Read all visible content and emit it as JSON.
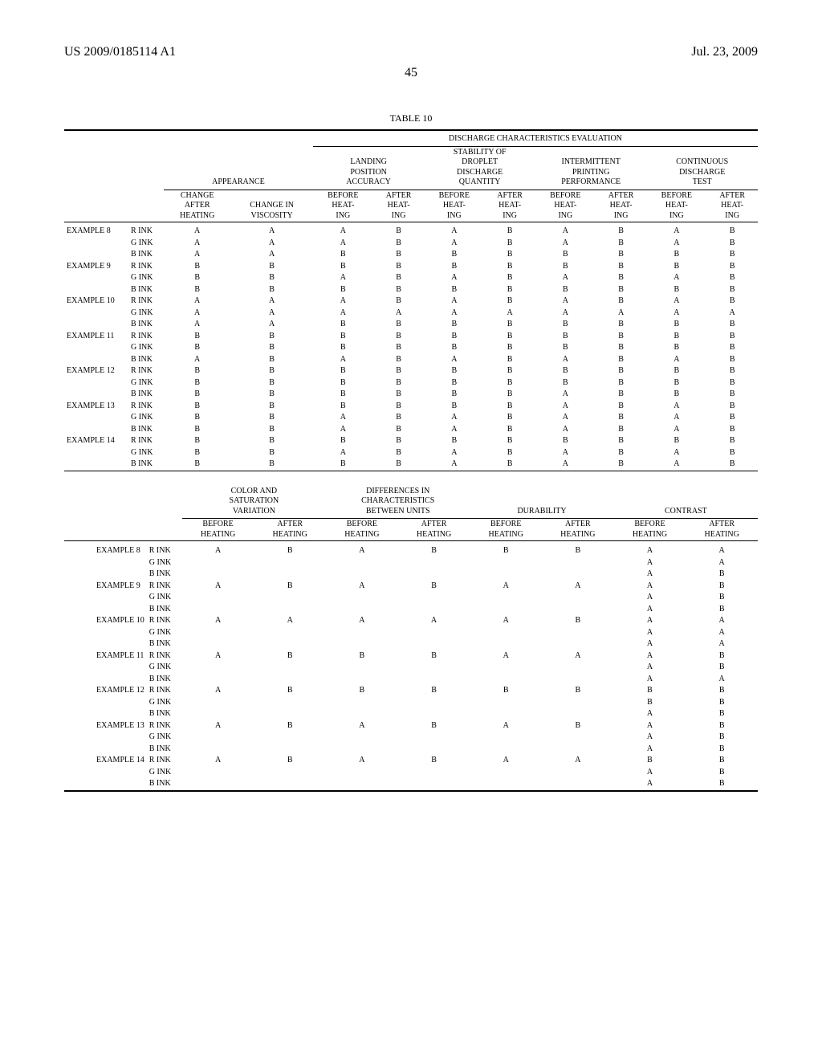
{
  "header": {
    "pubnum": "US 2009/0185114 A1",
    "date": "Jul. 23, 2009"
  },
  "pagenum": "45",
  "table_caption": "TABLE 10",
  "t1": {
    "group_top": "DISCHARGE CHARACTERISTICS EVALUATION",
    "appearance": "APPEARANCE",
    "groups": {
      "g1": [
        "LANDING",
        "POSITION",
        "ACCURACY"
      ],
      "g2": [
        "STABILITY OF",
        "DROPLET",
        "DISCHARGE",
        "QUANTITY"
      ],
      "g3": [
        "INTERMITTENT",
        "PRINTING",
        "PERFORMANCE"
      ],
      "g4": [
        "CONTINUOUS",
        "DISCHARGE",
        "TEST"
      ]
    },
    "subA": [
      "CHANGE",
      "AFTER",
      "HEATING"
    ],
    "subB": [
      "CHANGE IN",
      "VISCOSITY"
    ],
    "before": [
      "BEFORE",
      "HEAT-",
      "ING"
    ],
    "after": [
      "AFTER",
      "HEAT-",
      "ING"
    ],
    "rows": [
      {
        "ex": "EXAMPLE 8",
        "ink": "R INK",
        "c": [
          "A",
          "A",
          "A",
          "B",
          "A",
          "B",
          "A",
          "B",
          "A",
          "B"
        ]
      },
      {
        "ex": "",
        "ink": "G INK",
        "c": [
          "A",
          "A",
          "A",
          "B",
          "A",
          "B",
          "A",
          "B",
          "A",
          "B"
        ]
      },
      {
        "ex": "",
        "ink": "B INK",
        "c": [
          "A",
          "A",
          "B",
          "B",
          "B",
          "B",
          "B",
          "B",
          "B",
          "B"
        ]
      },
      {
        "ex": "EXAMPLE 9",
        "ink": "R INK",
        "c": [
          "B",
          "B",
          "B",
          "B",
          "B",
          "B",
          "B",
          "B",
          "B",
          "B"
        ]
      },
      {
        "ex": "",
        "ink": "G INK",
        "c": [
          "B",
          "B",
          "A",
          "B",
          "A",
          "B",
          "A",
          "B",
          "A",
          "B"
        ]
      },
      {
        "ex": "",
        "ink": "B INK",
        "c": [
          "B",
          "B",
          "B",
          "B",
          "B",
          "B",
          "B",
          "B",
          "B",
          "B"
        ]
      },
      {
        "ex": "EXAMPLE 10",
        "ink": "R INK",
        "c": [
          "A",
          "A",
          "A",
          "B",
          "A",
          "B",
          "A",
          "B",
          "A",
          "B"
        ]
      },
      {
        "ex": "",
        "ink": "G INK",
        "c": [
          "A",
          "A",
          "A",
          "A",
          "A",
          "A",
          "A",
          "A",
          "A",
          "A"
        ]
      },
      {
        "ex": "",
        "ink": "B INK",
        "c": [
          "A",
          "A",
          "B",
          "B",
          "B",
          "B",
          "B",
          "B",
          "B",
          "B"
        ]
      },
      {
        "ex": "EXAMPLE 11",
        "ink": "R INK",
        "c": [
          "B",
          "B",
          "B",
          "B",
          "B",
          "B",
          "B",
          "B",
          "B",
          "B"
        ]
      },
      {
        "ex": "",
        "ink": "G INK",
        "c": [
          "B",
          "B",
          "B",
          "B",
          "B",
          "B",
          "B",
          "B",
          "B",
          "B"
        ]
      },
      {
        "ex": "",
        "ink": "B INK",
        "c": [
          "A",
          "B",
          "A",
          "B",
          "A",
          "B",
          "A",
          "B",
          "A",
          "B"
        ]
      },
      {
        "ex": "EXAMPLE 12",
        "ink": "R INK",
        "c": [
          "B",
          "B",
          "B",
          "B",
          "B",
          "B",
          "B",
          "B",
          "B",
          "B"
        ]
      },
      {
        "ex": "",
        "ink": "G INK",
        "c": [
          "B",
          "B",
          "B",
          "B",
          "B",
          "B",
          "B",
          "B",
          "B",
          "B"
        ]
      },
      {
        "ex": "",
        "ink": "B INK",
        "c": [
          "B",
          "B",
          "B",
          "B",
          "B",
          "B",
          "A",
          "B",
          "B",
          "B"
        ]
      },
      {
        "ex": "EXAMPLE 13",
        "ink": "R INK",
        "c": [
          "B",
          "B",
          "B",
          "B",
          "B",
          "B",
          "A",
          "B",
          "A",
          "B"
        ]
      },
      {
        "ex": "",
        "ink": "G INK",
        "c": [
          "B",
          "B",
          "A",
          "B",
          "A",
          "B",
          "A",
          "B",
          "A",
          "B"
        ]
      },
      {
        "ex": "",
        "ink": "B INK",
        "c": [
          "B",
          "B",
          "A",
          "B",
          "A",
          "B",
          "A",
          "B",
          "A",
          "B"
        ]
      },
      {
        "ex": "EXAMPLE 14",
        "ink": "R INK",
        "c": [
          "B",
          "B",
          "B",
          "B",
          "B",
          "B",
          "B",
          "B",
          "B",
          "B"
        ]
      },
      {
        "ex": "",
        "ink": "G INK",
        "c": [
          "B",
          "B",
          "A",
          "B",
          "A",
          "B",
          "A",
          "B",
          "A",
          "B"
        ]
      },
      {
        "ex": "",
        "ink": "B INK",
        "c": [
          "B",
          "B",
          "B",
          "B",
          "A",
          "B",
          "A",
          "B",
          "A",
          "B"
        ]
      }
    ]
  },
  "t2": {
    "groups": {
      "g1": [
        "COLOR AND",
        "SATURATION",
        "VARIATION"
      ],
      "g2": [
        "DIFFERENCES IN",
        "CHARACTERISTICS",
        "BETWEEN UNITS"
      ],
      "g3": "DURABILITY",
      "g4": "CONTRAST"
    },
    "before": [
      "BEFORE",
      "HEATING"
    ],
    "after": [
      "AFTER",
      "HEATING"
    ],
    "rows": [
      {
        "ex": "EXAMPLE 8",
        "ink": "R INK",
        "c": [
          "A",
          "B",
          "A",
          "B",
          "B",
          "B",
          "A",
          "A"
        ]
      },
      {
        "ex": "",
        "ink": "G INK",
        "c": [
          "",
          "",
          "",
          "",
          "",
          "",
          "A",
          "A"
        ]
      },
      {
        "ex": "",
        "ink": "B INK",
        "c": [
          "",
          "",
          "",
          "",
          "",
          "",
          "A",
          "B"
        ]
      },
      {
        "ex": "EXAMPLE 9",
        "ink": "R INK",
        "c": [
          "A",
          "B",
          "A",
          "B",
          "A",
          "A",
          "A",
          "B"
        ]
      },
      {
        "ex": "",
        "ink": "G INK",
        "c": [
          "",
          "",
          "",
          "",
          "",
          "",
          "A",
          "B"
        ]
      },
      {
        "ex": "",
        "ink": "B INK",
        "c": [
          "",
          "",
          "",
          "",
          "",
          "",
          "A",
          "B"
        ]
      },
      {
        "ex": "EXAMPLE 10",
        "ink": "R INK",
        "c": [
          "A",
          "A",
          "A",
          "A",
          "A",
          "B",
          "A",
          "A"
        ]
      },
      {
        "ex": "",
        "ink": "G INK",
        "c": [
          "",
          "",
          "",
          "",
          "",
          "",
          "A",
          "A"
        ]
      },
      {
        "ex": "",
        "ink": "B INK",
        "c": [
          "",
          "",
          "",
          "",
          "",
          "",
          "A",
          "A"
        ]
      },
      {
        "ex": "EXAMPLE 11",
        "ink": "R INK",
        "c": [
          "A",
          "B",
          "B",
          "B",
          "A",
          "A",
          "A",
          "B"
        ]
      },
      {
        "ex": "",
        "ink": "G INK",
        "c": [
          "",
          "",
          "",
          "",
          "",
          "",
          "A",
          "B"
        ]
      },
      {
        "ex": "",
        "ink": "B INK",
        "c": [
          "",
          "",
          "",
          "",
          "",
          "",
          "A",
          "A"
        ]
      },
      {
        "ex": "EXAMPLE 12",
        "ink": "R INK",
        "c": [
          "A",
          "B",
          "B",
          "B",
          "B",
          "B",
          "B",
          "B"
        ]
      },
      {
        "ex": "",
        "ink": "G INK",
        "c": [
          "",
          "",
          "",
          "",
          "",
          "",
          "B",
          "B"
        ]
      },
      {
        "ex": "",
        "ink": "B INK",
        "c": [
          "",
          "",
          "",
          "",
          "",
          "",
          "A",
          "B"
        ]
      },
      {
        "ex": "EXAMPLE 13",
        "ink": "R INK",
        "c": [
          "A",
          "B",
          "A",
          "B",
          "A",
          "B",
          "A",
          "B"
        ]
      },
      {
        "ex": "",
        "ink": "G INK",
        "c": [
          "",
          "",
          "",
          "",
          "",
          "",
          "A",
          "B"
        ]
      },
      {
        "ex": "",
        "ink": "B INK",
        "c": [
          "",
          "",
          "",
          "",
          "",
          "",
          "A",
          "B"
        ]
      },
      {
        "ex": "EXAMPLE 14",
        "ink": "R INK",
        "c": [
          "A",
          "B",
          "A",
          "B",
          "A",
          "A",
          "B",
          "B"
        ]
      },
      {
        "ex": "",
        "ink": "G INK",
        "c": [
          "",
          "",
          "",
          "",
          "",
          "",
          "A",
          "B"
        ]
      },
      {
        "ex": "",
        "ink": "B INK",
        "c": [
          "",
          "",
          "",
          "",
          "",
          "",
          "A",
          "B"
        ]
      }
    ]
  }
}
